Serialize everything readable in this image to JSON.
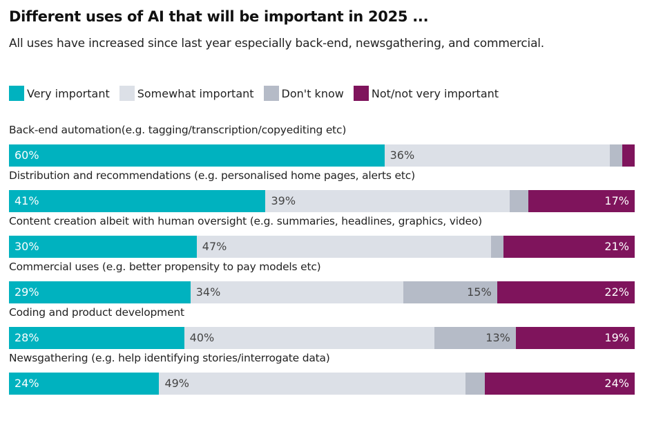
{
  "chart_data": {
    "type": "bar",
    "orientation": "horizontal-stacked",
    "title": "Different uses of AI that will be important in 2025 ...",
    "subtitle": "All uses have increased since last year especially back-end, newsgathering, and commercial.",
    "legend_position": "top-left",
    "grid": false,
    "xlim": [
      0,
      100
    ],
    "categories": [
      "Back-end automation(e.g. tagging/transcription/copyediting etc)",
      "Distribution and recommendations (e.g. personalised home pages, alerts etc)",
      "Content creation albeit with human oversight (e.g. summaries, headlines, graphics, video)",
      "Commercial uses (e.g. better propensity to pay models etc)",
      "Coding and product development",
      "Newsgathering (e.g. help identifying stories/interrogate data)"
    ],
    "series": [
      {
        "name": "Very important",
        "color": "#00b2bf",
        "text_color": "#ffffff",
        "values": [
          60,
          41,
          30,
          29,
          28,
          24
        ],
        "labels": [
          "60%",
          "41%",
          "30%",
          "29%",
          "28%",
          "24%"
        ]
      },
      {
        "name": "Somewhat important",
        "color": "#dce0e7",
        "text_color": "#444444",
        "values": [
          36,
          39,
          47,
          34,
          40,
          49
        ],
        "labels": [
          "36%",
          "39%",
          "47%",
          "34%",
          "40%",
          "49%"
        ]
      },
      {
        "name": "Don't know",
        "color": "#b5bbc7",
        "text_color": "#444444",
        "values": [
          2,
          3,
          2,
          15,
          13,
          3
        ],
        "labels": [
          "",
          "",
          "",
          "15%",
          "13%",
          ""
        ]
      },
      {
        "name": "Not/not very important",
        "color": "#7f145c",
        "text_color": "#ffffff",
        "values": [
          2,
          17,
          21,
          22,
          19,
          24
        ],
        "labels": [
          "",
          "17%",
          "21%",
          "22%",
          "19%",
          "24%"
        ]
      }
    ]
  }
}
